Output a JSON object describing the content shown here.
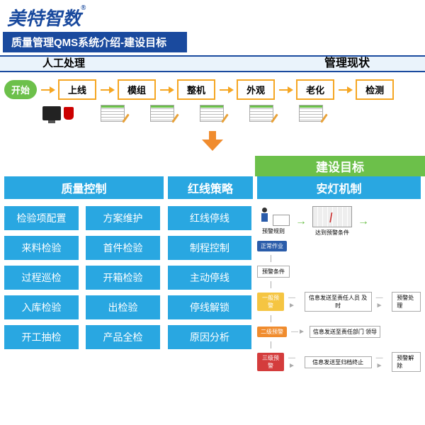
{
  "brand": {
    "name": "美特智数",
    "mark": "®",
    "color": "#1a4a9e"
  },
  "title": {
    "text": "质量管理QMS系统介绍-建设目标",
    "bg": "#1a4a9e"
  },
  "band_top": {
    "left": "人工处理",
    "right": "管理现状",
    "border": "#1a4a9e",
    "bg": "#eaf3fb"
  },
  "flow": {
    "start": "开始",
    "start_bg": "#6cc04a",
    "steps": [
      "上线",
      "模组",
      "整机",
      "外观",
      "老化",
      "检测"
    ],
    "box_border": "#f5a623",
    "arrow_color": "#f5a623"
  },
  "big_arrow_color": "#f08c2e",
  "goals_label": {
    "text": "建设目标",
    "bg": "#6cc04a"
  },
  "sections": {
    "bg": "#29a7e1",
    "h1": "质量控制",
    "h2": "红线策略",
    "h3": "安灯机制"
  },
  "quality_btns": [
    "检验项配置",
    "方案维护",
    "来料检验",
    "首件检验",
    "过程巡检",
    "开箱检验",
    "入库检验",
    "出检验",
    "开工抽检",
    "产品全检"
  ],
  "redline_btns": [
    "红线停线",
    "制程控制",
    "主动停线",
    "停线解锁",
    "原因分析"
  ],
  "btn_bg": "#29a7e1",
  "andon": {
    "top": {
      "left_label": "预警规则",
      "right_label": "达到预警条件"
    },
    "state0": {
      "tag": "正常作业",
      "tag_bg": "#2a5caa"
    },
    "label_cond": "预警条件",
    "states": [
      {
        "tag": "一般预警",
        "tag_bg": "#f5c542",
        "box": "信息发送至责任人员\\n及时",
        "side": "预警处理"
      },
      {
        "tag": "二级预警",
        "tag_bg": "#f08c2e",
        "box": "信息发送至责任部门\\n领导",
        "side": ""
      },
      {
        "tag": "三级预警",
        "tag_bg": "#d43c3c",
        "box": "信息发送至归档终止\\n",
        "side": "预警解除"
      }
    ]
  }
}
